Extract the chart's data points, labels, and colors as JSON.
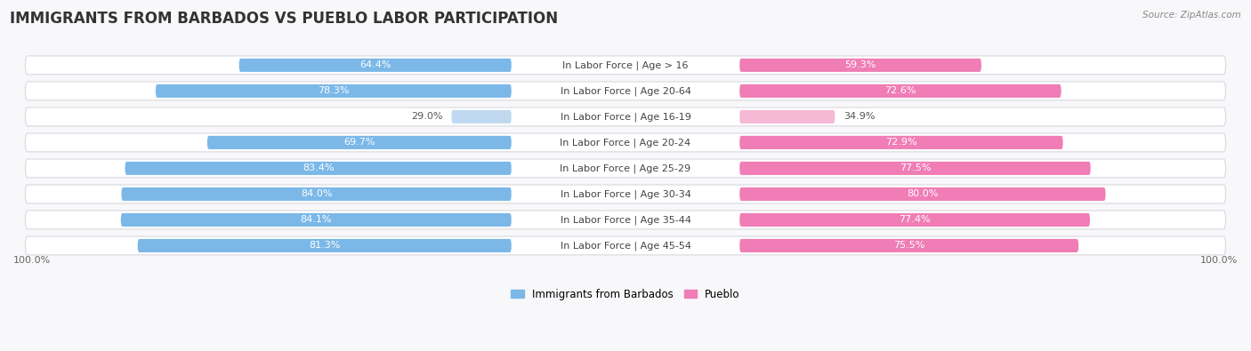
{
  "title": "IMMIGRANTS FROM BARBADOS VS PUEBLO LABOR PARTICIPATION",
  "source": "Source: ZipAtlas.com",
  "categories": [
    "In Labor Force | Age > 16",
    "In Labor Force | Age 20-64",
    "In Labor Force | Age 16-19",
    "In Labor Force | Age 20-24",
    "In Labor Force | Age 25-29",
    "In Labor Force | Age 30-34",
    "In Labor Force | Age 35-44",
    "In Labor Force | Age 45-54"
  ],
  "barbados_values": [
    64.4,
    78.3,
    29.0,
    69.7,
    83.4,
    84.0,
    84.1,
    81.3
  ],
  "pueblo_values": [
    59.3,
    72.6,
    34.9,
    72.9,
    77.5,
    80.0,
    77.4,
    75.5
  ],
  "barbados_color": "#7BB8E8",
  "pueblo_color": "#F07DB5",
  "barbados_color_light": "#C0D9F0",
  "pueblo_color_light": "#F5B8D5",
  "row_bg_color": "#EAEAEF",
  "row_border_color": "#D8D8E0",
  "bg_color": "#F8F8FA",
  "max_val": 100.0,
  "legend_barbados": "Immigrants from Barbados",
  "legend_pueblo": "Pueblo",
  "title_fontsize": 12,
  "label_fontsize": 8.0,
  "cat_fontsize": 8.0,
  "axis_label_left": "100.0%",
  "axis_label_right": "100.0%"
}
